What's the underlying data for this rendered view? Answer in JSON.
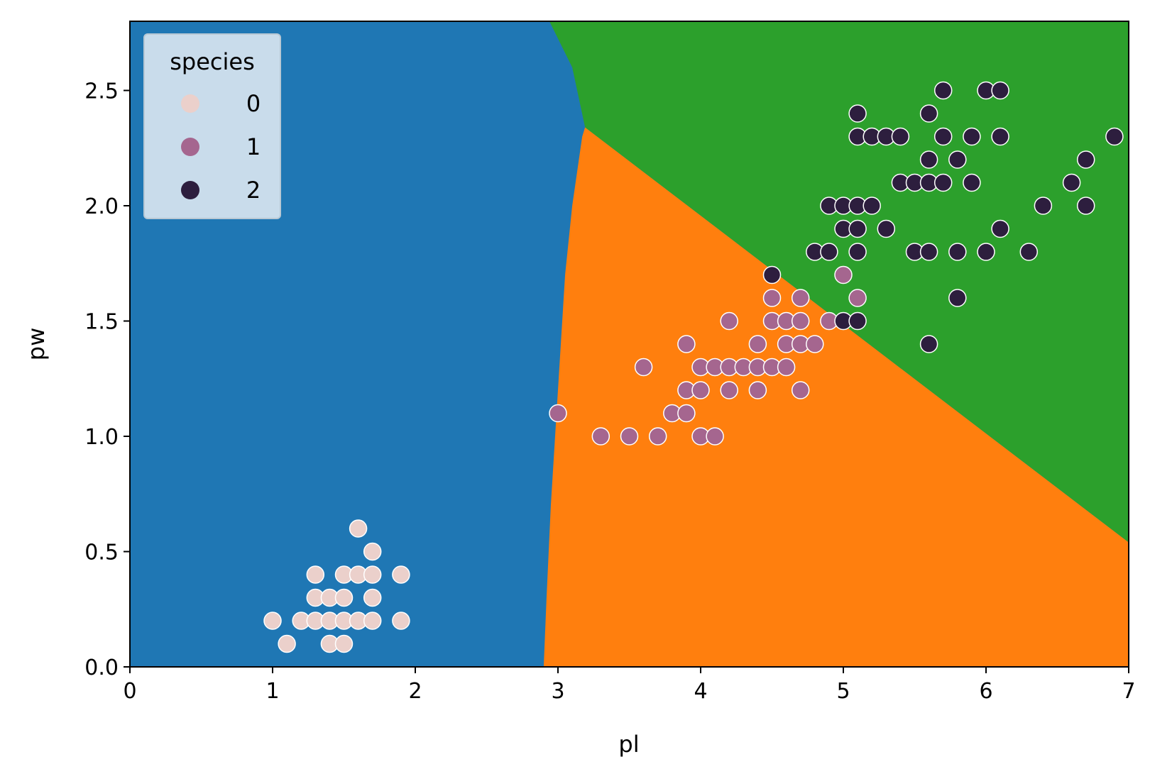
{
  "chart_data": {
    "type": "scatter",
    "title": "",
    "xlabel": "pl",
    "ylabel": "pw",
    "xlim": [
      0,
      7
    ],
    "ylim": [
      0,
      2.8
    ],
    "x_ticks": [
      "0",
      "1",
      "2",
      "3",
      "4",
      "5",
      "6",
      "7"
    ],
    "y_ticks": [
      "0.0",
      "0.5",
      "1.0",
      "1.5",
      "2.0",
      "2.5"
    ],
    "grid": false,
    "legend": {
      "title": "species",
      "placement": "top-left",
      "entries": [
        {
          "label": "0",
          "color": "#ebd0cb"
        },
        {
          "label": "1",
          "color": "#a5668f"
        },
        {
          "label": "2",
          "color": "#2d1e3e"
        }
      ]
    },
    "background_regions": [
      {
        "class": "0",
        "color": "#1f77b4"
      },
      {
        "class": "1",
        "color": "#ff7f0e"
      },
      {
        "class": "2",
        "color": "#2ca02c"
      }
    ],
    "series": [
      {
        "name": "0",
        "color": "#ebd0cb",
        "points": [
          [
            1.0,
            0.2
          ],
          [
            1.1,
            0.1
          ],
          [
            1.2,
            0.2
          ],
          [
            1.3,
            0.2
          ],
          [
            1.3,
            0.3
          ],
          [
            1.3,
            0.4
          ],
          [
            1.4,
            0.1
          ],
          [
            1.4,
            0.2
          ],
          [
            1.4,
            0.3
          ],
          [
            1.5,
            0.1
          ],
          [
            1.5,
            0.2
          ],
          [
            1.5,
            0.3
          ],
          [
            1.5,
            0.4
          ],
          [
            1.6,
            0.2
          ],
          [
            1.6,
            0.4
          ],
          [
            1.6,
            0.6
          ],
          [
            1.7,
            0.2
          ],
          [
            1.7,
            0.3
          ],
          [
            1.7,
            0.4
          ],
          [
            1.7,
            0.5
          ],
          [
            1.9,
            0.2
          ],
          [
            1.9,
            0.4
          ]
        ]
      },
      {
        "name": "1",
        "color": "#a5668f",
        "points": [
          [
            3.0,
            1.1
          ],
          [
            3.3,
            1.0
          ],
          [
            3.5,
            1.0
          ],
          [
            3.6,
            1.3
          ],
          [
            3.7,
            1.0
          ],
          [
            3.8,
            1.1
          ],
          [
            3.9,
            1.1
          ],
          [
            3.9,
            1.2
          ],
          [
            3.9,
            1.4
          ],
          [
            4.0,
            1.0
          ],
          [
            4.0,
            1.2
          ],
          [
            4.0,
            1.3
          ],
          [
            4.1,
            1.0
          ],
          [
            4.1,
            1.3
          ],
          [
            4.2,
            1.2
          ],
          [
            4.2,
            1.3
          ],
          [
            4.2,
            1.5
          ],
          [
            4.3,
            1.3
          ],
          [
            4.4,
            1.2
          ],
          [
            4.4,
            1.3
          ],
          [
            4.4,
            1.4
          ],
          [
            4.5,
            1.3
          ],
          [
            4.5,
            1.5
          ],
          [
            4.5,
            1.6
          ],
          [
            4.6,
            1.3
          ],
          [
            4.6,
            1.4
          ],
          [
            4.6,
            1.5
          ],
          [
            4.7,
            1.2
          ],
          [
            4.7,
            1.4
          ],
          [
            4.7,
            1.5
          ],
          [
            4.7,
            1.6
          ],
          [
            4.8,
            1.4
          ],
          [
            4.9,
            1.5
          ],
          [
            5.0,
            1.7
          ],
          [
            5.1,
            1.6
          ]
        ]
      },
      {
        "name": "2",
        "color": "#2d1e3e",
        "points": [
          [
            4.5,
            1.7
          ],
          [
            4.8,
            1.8
          ],
          [
            4.9,
            1.8
          ],
          [
            4.9,
            2.0
          ],
          [
            5.0,
            1.5
          ],
          [
            5.0,
            1.9
          ],
          [
            5.0,
            2.0
          ],
          [
            5.1,
            1.5
          ],
          [
            5.1,
            1.8
          ],
          [
            5.1,
            1.9
          ],
          [
            5.1,
            2.0
          ],
          [
            5.1,
            2.3
          ],
          [
            5.1,
            2.4
          ],
          [
            5.2,
            2.0
          ],
          [
            5.2,
            2.3
          ],
          [
            5.3,
            1.9
          ],
          [
            5.3,
            2.3
          ],
          [
            5.4,
            2.1
          ],
          [
            5.4,
            2.3
          ],
          [
            5.5,
            1.8
          ],
          [
            5.5,
            2.1
          ],
          [
            5.6,
            1.4
          ],
          [
            5.6,
            1.8
          ],
          [
            5.6,
            2.1
          ],
          [
            5.6,
            2.2
          ],
          [
            5.6,
            2.4
          ],
          [
            5.7,
            2.1
          ],
          [
            5.7,
            2.3
          ],
          [
            5.7,
            2.5
          ],
          [
            5.8,
            1.6
          ],
          [
            5.8,
            1.8
          ],
          [
            5.8,
            2.2
          ],
          [
            5.9,
            2.1
          ],
          [
            5.9,
            2.3
          ],
          [
            6.0,
            1.8
          ],
          [
            6.0,
            2.5
          ],
          [
            6.1,
            1.9
          ],
          [
            6.1,
            2.3
          ],
          [
            6.1,
            2.5
          ],
          [
            6.3,
            1.8
          ],
          [
            6.4,
            2.0
          ],
          [
            6.6,
            2.1
          ],
          [
            6.7,
            2.0
          ],
          [
            6.7,
            2.2
          ],
          [
            6.9,
            2.3
          ]
        ]
      }
    ]
  }
}
